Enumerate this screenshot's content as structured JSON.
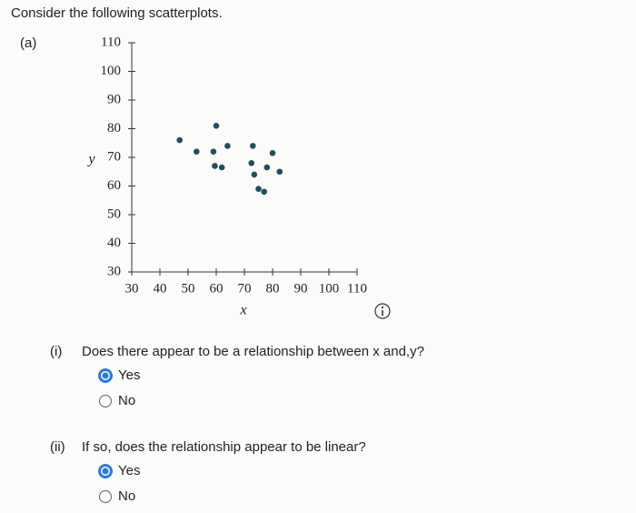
{
  "header": {
    "prompt": "Consider the following scatterplots.",
    "part": "(a)"
  },
  "chart_data": {
    "type": "scatter",
    "xlabel": "x",
    "ylabel": "y",
    "x": [
      47,
      53,
      60,
      59,
      59.5,
      62,
      64,
      73,
      72.5,
      73.5,
      75,
      77,
      78,
      80,
      82.5
    ],
    "values": [
      76,
      72,
      81,
      72,
      67,
      66.5,
      74,
      74,
      68,
      64,
      59,
      58,
      66.5,
      71.5,
      65
    ],
    "color": "#1f4f5c",
    "xlim": [
      30,
      110
    ],
    "ylim": [
      30,
      110
    ],
    "xticks": [
      30,
      40,
      50,
      60,
      70,
      80,
      90,
      100,
      110
    ],
    "yticks": [
      30,
      40,
      50,
      60,
      70,
      80,
      90,
      100,
      110
    ],
    "grid": false
  },
  "questions": [
    {
      "label": "(i)",
      "text": "Does there appear to be a relationship between x and,y?",
      "options": [
        "Yes",
        "No"
      ],
      "selected": 0
    },
    {
      "label": "(ii)",
      "text": "If so, does the relationship appear to be linear?",
      "options": [
        "Yes",
        "No"
      ],
      "selected": 0
    }
  ]
}
